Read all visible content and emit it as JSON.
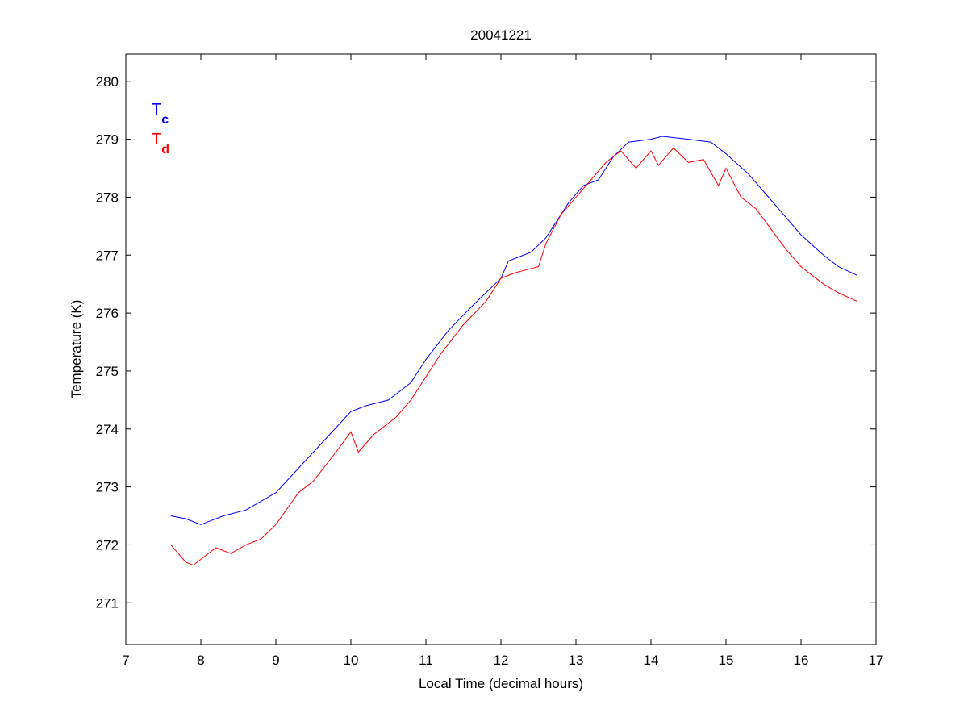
{
  "chart_data": {
    "type": "line",
    "title": "20041221",
    "xlabel": "Local Time (decimal hours)",
    "ylabel": "Temperature (K)",
    "xlim": [
      7,
      17
    ],
    "ylim": [
      270.28,
      280.47
    ],
    "xticks": [
      7,
      8,
      9,
      10,
      11,
      12,
      13,
      14,
      15,
      16,
      17
    ],
    "yticks": [
      271,
      272,
      273,
      274,
      275,
      276,
      277,
      278,
      279,
      280
    ],
    "grid": false,
    "legend_placement": "top-left",
    "series": [
      {
        "name": "T",
        "subscript": "c",
        "color": "#0000ff",
        "x": [
          7.6,
          7.8,
          8.0,
          8.3,
          8.6,
          9.0,
          9.5,
          10.0,
          10.2,
          10.5,
          10.8,
          11.0,
          11.3,
          11.6,
          12.0,
          12.1,
          12.4,
          12.6,
          12.9,
          13.1,
          13.3,
          13.5,
          13.7,
          14.0,
          14.15,
          14.5,
          14.8,
          15.0,
          15.3,
          15.6,
          16.0,
          16.3,
          16.5,
          16.75
        ],
        "y": [
          272.5,
          272.45,
          272.35,
          272.5,
          272.6,
          272.9,
          273.6,
          274.3,
          274.4,
          274.5,
          274.8,
          275.2,
          275.7,
          276.1,
          276.6,
          276.9,
          277.05,
          277.3,
          277.9,
          278.2,
          278.3,
          278.7,
          278.95,
          279.0,
          279.05,
          279.0,
          278.95,
          278.75,
          278.4,
          277.95,
          277.35,
          277.0,
          276.8,
          276.65
        ]
      },
      {
        "name": "T",
        "subscript": "d",
        "color": "#ff0000",
        "x": [
          7.6,
          7.8,
          7.9,
          8.0,
          8.2,
          8.4,
          8.6,
          8.8,
          9.0,
          9.3,
          9.5,
          9.8,
          10.0,
          10.1,
          10.3,
          10.6,
          10.8,
          11.0,
          11.2,
          11.5,
          11.8,
          12.0,
          12.2,
          12.5,
          12.6,
          12.8,
          13.0,
          13.2,
          13.4,
          13.6,
          13.8,
          14.0,
          14.1,
          14.3,
          14.5,
          14.7,
          14.9,
          15.0,
          15.2,
          15.4,
          15.6,
          15.8,
          16.0,
          16.3,
          16.5,
          16.75
        ],
        "y": [
          272.0,
          271.7,
          271.65,
          271.75,
          271.95,
          271.85,
          272.0,
          272.1,
          272.35,
          272.9,
          273.1,
          273.6,
          273.95,
          273.6,
          273.9,
          274.2,
          274.5,
          274.9,
          275.3,
          275.8,
          276.2,
          276.6,
          276.7,
          276.8,
          277.2,
          277.7,
          278.0,
          278.3,
          278.6,
          278.8,
          278.5,
          278.8,
          278.55,
          278.85,
          278.6,
          278.65,
          278.2,
          278.5,
          278.0,
          277.8,
          277.45,
          277.1,
          276.8,
          276.5,
          276.35,
          276.2
        ]
      }
    ]
  }
}
